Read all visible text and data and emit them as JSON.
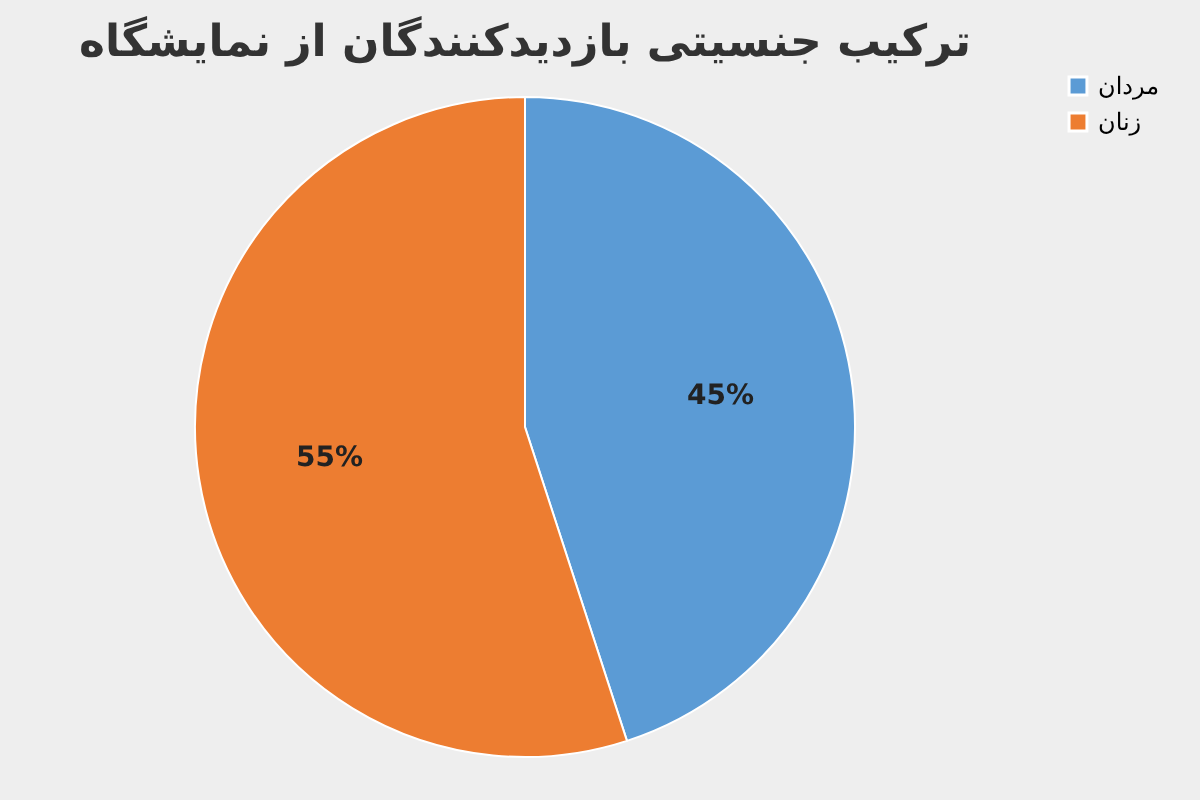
{
  "chart_data": {
    "type": "pie",
    "title": "ترکیب جنسیتی بازدیدکنندگان از نمایشگاه",
    "categories": [
      "مردان",
      "زنان"
    ],
    "values": [
      45,
      55
    ],
    "colors": [
      "#5b9bd5",
      "#ed7d31"
    ],
    "value_labels": [
      "45%",
      "55%"
    ],
    "legend": "right"
  }
}
